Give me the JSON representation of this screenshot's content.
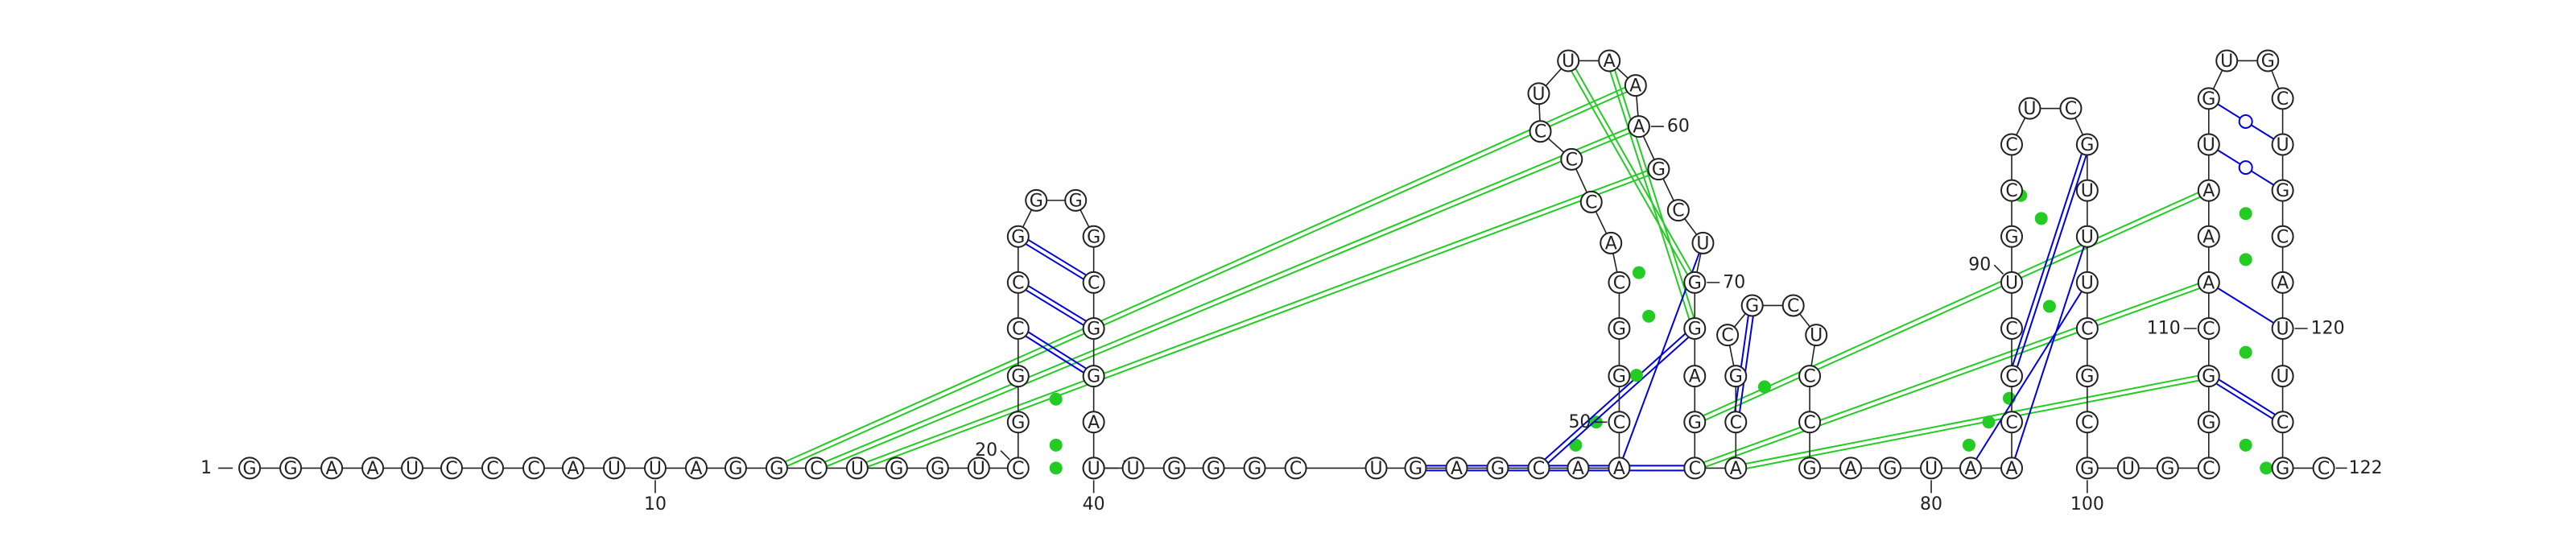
{
  "sequence": "GGAAUCCCAUUAGGCUGGUCGGCCGGGGCGGAGUUGGGCUGAGCAACGGCACCCUUAAAGCUGGAGCACGCGCUCCGAGUAACCCUGCCUCGUUUCGCGUGCGGCAAAUGUGCUGCAUUCGC",
  "colors": {
    "outline": "#222222",
    "watson_crick_pair": "#0000dd",
    "pseudoknot": "#22cc22",
    "gu_wobble": "#0000dd",
    "special_pair": "#22cc22"
  },
  "labels": {
    "start": "1",
    "end": "122",
    "ticks": [
      "10",
      "20",
      "30",
      "40",
      "50",
      "60",
      "70",
      "80",
      "90",
      "100",
      "110",
      "120"
    ]
  },
  "pairs": [
    [
      20,
      34
    ],
    [
      21,
      33
    ],
    [
      22,
      32
    ],
    [
      23,
      31
    ],
    [
      24,
      30
    ],
    [
      25,
      29
    ],
    [
      41,
      67
    ],
    [
      42,
      66
    ],
    [
      43,
      65
    ],
    [
      44,
      64
    ],
    [
      45,
      63
    ],
    [
      46,
      62
    ],
    [
      47,
      61
    ],
    [
      48,
      60
    ],
    [
      68,
      73
    ],
    [
      69,
      72
    ],
    [
      78,
      98
    ],
    [
      79,
      97
    ],
    [
      80,
      96
    ],
    [
      81,
      95
    ],
    [
      82,
      94
    ],
    [
      83,
      93
    ],
    [
      84,
      92
    ],
    [
      85,
      91
    ],
    [
      86,
      90
    ],
    [
      102,
      122
    ],
    [
      103,
      121
    ],
    [
      104,
      120
    ],
    [
      105,
      119
    ],
    [
      106,
      118
    ],
    [
      107,
      117
    ],
    [
      108,
      116
    ],
    [
      109,
      115
    ],
    [
      110,
      114
    ]
  ],
  "pseudoknots": [
    [
      14,
      58
    ],
    [
      15,
      59
    ],
    [
      16,
      60
    ],
    [
      56,
      63
    ],
    [
      57,
      64
    ],
    [
      66,
      108
    ],
    [
      67,
      106
    ],
    [
      68,
      104
    ]
  ]
}
